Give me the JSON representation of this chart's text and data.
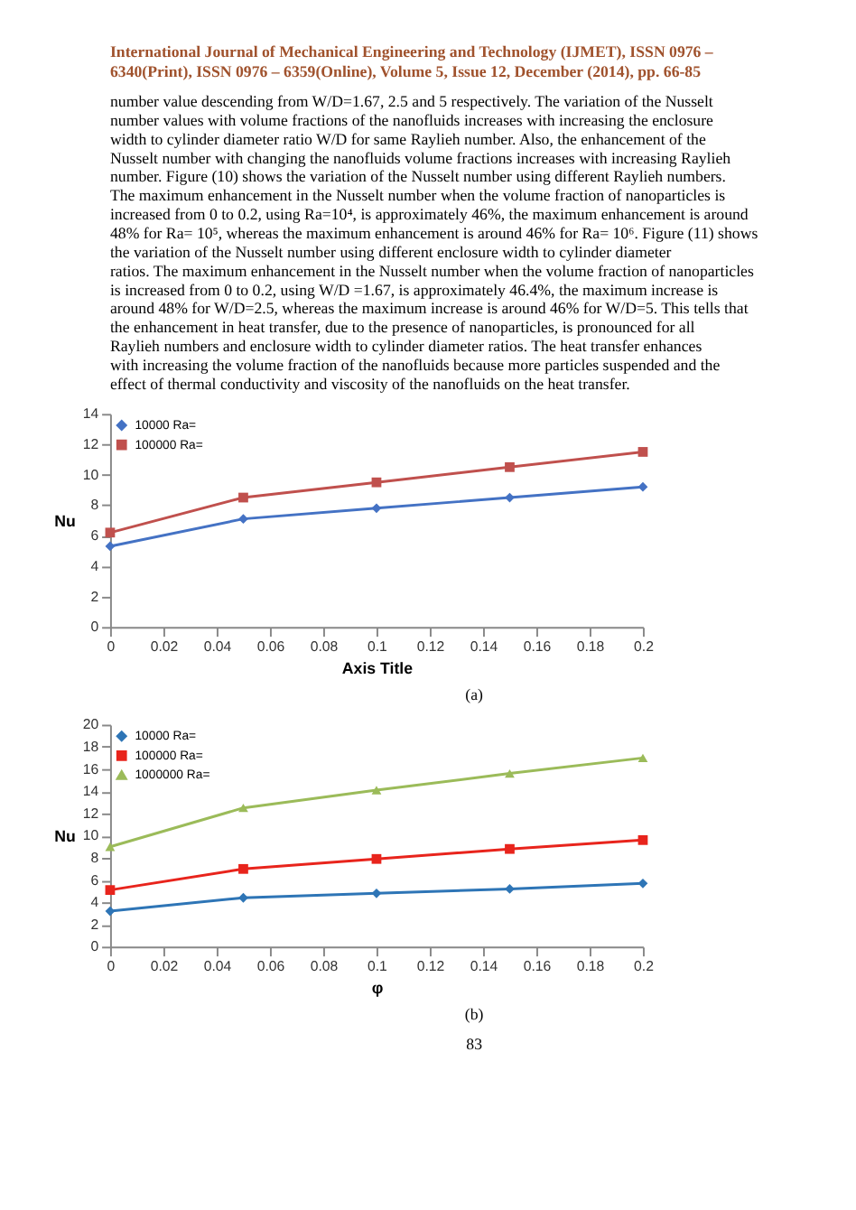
{
  "chart_data": [
    {
      "type": "line",
      "xlabel": "Axis Title",
      "ylabel": "Nu",
      "x": [
        0,
        0.05,
        0.1,
        0.15,
        0.2
      ],
      "series": [
        {
          "name": "10000 Ra=",
          "color": "#4472c4",
          "marker": "diamond",
          "values": [
            5.3,
            7.1,
            7.8,
            8.5,
            9.2
          ]
        },
        {
          "name": "100000 Ra=",
          "color": "#c0504d",
          "marker": "square",
          "values": [
            6.2,
            8.5,
            9.5,
            10.5,
            11.5
          ]
        }
      ],
      "xlim": [
        0,
        0.2
      ],
      "xticks": [
        0,
        0.02,
        0.04,
        0.06,
        0.08,
        0.1,
        0.12,
        0.14,
        0.16,
        0.18,
        0.2
      ],
      "ylim": [
        0,
        14
      ],
      "yticks": [
        0,
        2,
        4,
        6,
        8,
        10,
        12,
        14
      ],
      "grid": false,
      "legend": "top left",
      "line_style": "solid",
      "annotations": [
        "International Journal of Mechanical Engineering and Technology (IJMET), ISSN 0976 – 6340(Print), ISSN 0976 – 6359(Online), Volume 5, Issue 12, December (2014), pp. 66-85",
        "number value descending from W/D=1.67, 2.5 and 5 respectively. The variation of the Nusselt number values with volume fractions of the nanofluids increases with increasing the enclosure width to cylinder diameter ratio W/D for same Raylieh number. Also, the enhancement of the Nusselt number with changing the nanofluids volume fractions increases with increasing Raylieh number. Figure (10) shows the variation of the Nusselt number using different Raylieh numbers. The maximum enhancement in the Nusselt number when the volume fraction of nanoparticles is increased from 0 to 0.2, using Ra=10⁴, is approximately 46%, the maximum enhancement is around 48% for Ra= 10⁵, whereas the maximum enhancement is around 46% for Ra= 10⁶. Figure (11) shows the variation of the Nusselt number using different enclosure width to cylinder diameter ratios. The maximum enhancement in the Nusselt number when the volume fraction of nanoparticles is increased from 0 to 0.2, using W/D =1.67, is approximately 46.4%, the maximum increase is around 48% for W/D=2.5, whereas the maximum increase is around 46% for W/D=5. This tells that the enhancement in heat transfer, due to the presence of nanoparticles, is pronounced for all Raylieh numbers and enclosure width to cylinder diameter ratios. The heat transfer enhances with increasing the volume fraction of the nanofluids because more particles suspended and the effect of thermal conductivity and viscosity of the nanofluids on the heat transfer.",
        "(a)"
      ]
    },
    {
      "type": "line",
      "xlabel": "φ",
      "ylabel": "Nu",
      "x": [
        0,
        0.05,
        0.1,
        0.15,
        0.2
      ],
      "series": [
        {
          "name": "10000 Ra=",
          "color": "#2e75b6",
          "marker": "diamond",
          "values": [
            3.2,
            4.4,
            4.8,
            5.2,
            5.7
          ]
        },
        {
          "name": "100000 Ra=",
          "color": "#e8241c",
          "marker": "square",
          "values": [
            5.1,
            7.0,
            7.9,
            8.8,
            9.6
          ]
        },
        {
          "name": "1000000 Ra=",
          "color": "#9bbb59",
          "marker": "triangle",
          "values": [
            9.0,
            12.5,
            14.1,
            15.6,
            17.0
          ]
        }
      ],
      "xlim": [
        0,
        0.2
      ],
      "xticks": [
        0,
        0.02,
        0.04,
        0.06,
        0.08,
        0.1,
        0.12,
        0.14,
        0.16,
        0.18,
        0.2
      ],
      "ylim": [
        0,
        20
      ],
      "yticks": [
        0,
        2,
        4,
        6,
        8,
        10,
        12,
        14,
        16,
        18,
        20
      ],
      "grid": false,
      "legend": "top left",
      "line_style": "solid",
      "annotations": [
        "(b)",
        "83"
      ]
    }
  ]
}
